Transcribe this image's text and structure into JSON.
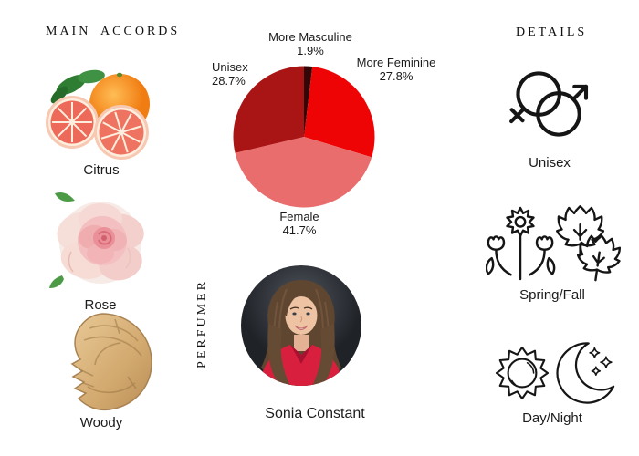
{
  "left": {
    "heading": "MAIN ACCORDS",
    "accords": [
      {
        "label": "Citrus",
        "icon": "citrus-fruit-image"
      },
      {
        "label": "Rose",
        "icon": "rose-flower-image"
      },
      {
        "label": "Woody",
        "icon": "wood-piece-image"
      }
    ]
  },
  "center": {
    "perfumer_heading": "PERFUMER",
    "perfumer_name": "Sonia Constant",
    "photo_icon": "perfumer-portrait-photo"
  },
  "right": {
    "heading": "DETAILS",
    "details": [
      {
        "label": "Unisex",
        "icon": "gender-unisex-icon"
      },
      {
        "label": "Spring/Fall",
        "icon": "seasons-spring-fall-icon"
      },
      {
        "label": "Day/Night",
        "icon": "day-night-icon"
      }
    ]
  },
  "chart_data": {
    "type": "pie",
    "title": "",
    "start_angle_deg": 0,
    "direction": "clockwise",
    "legend_position": "labels-around-pie",
    "slices": [
      {
        "label": "More Masculine",
        "value": 1.9,
        "pct": "1.9%",
        "color": "#310708"
      },
      {
        "label": "More Feminine",
        "value": 27.8,
        "pct": "27.8%",
        "color": "#ee0404"
      },
      {
        "label": "Female",
        "value": 41.7,
        "pct": "41.7%",
        "color": "#e96d6d"
      },
      {
        "label": "Unisex",
        "value": 28.7,
        "pct": "28.7%",
        "color": "#a91414"
      }
    ]
  },
  "colors": {
    "background": "#ffffff",
    "text": "#1a1a1a",
    "blouse_red": "#d91f3e",
    "wood_tan": "#d2a96f",
    "grapefruit_flesh": "#ed6a5a",
    "orange_fruit": "#f78f1e",
    "rose_pink": "#f3c4c2"
  }
}
